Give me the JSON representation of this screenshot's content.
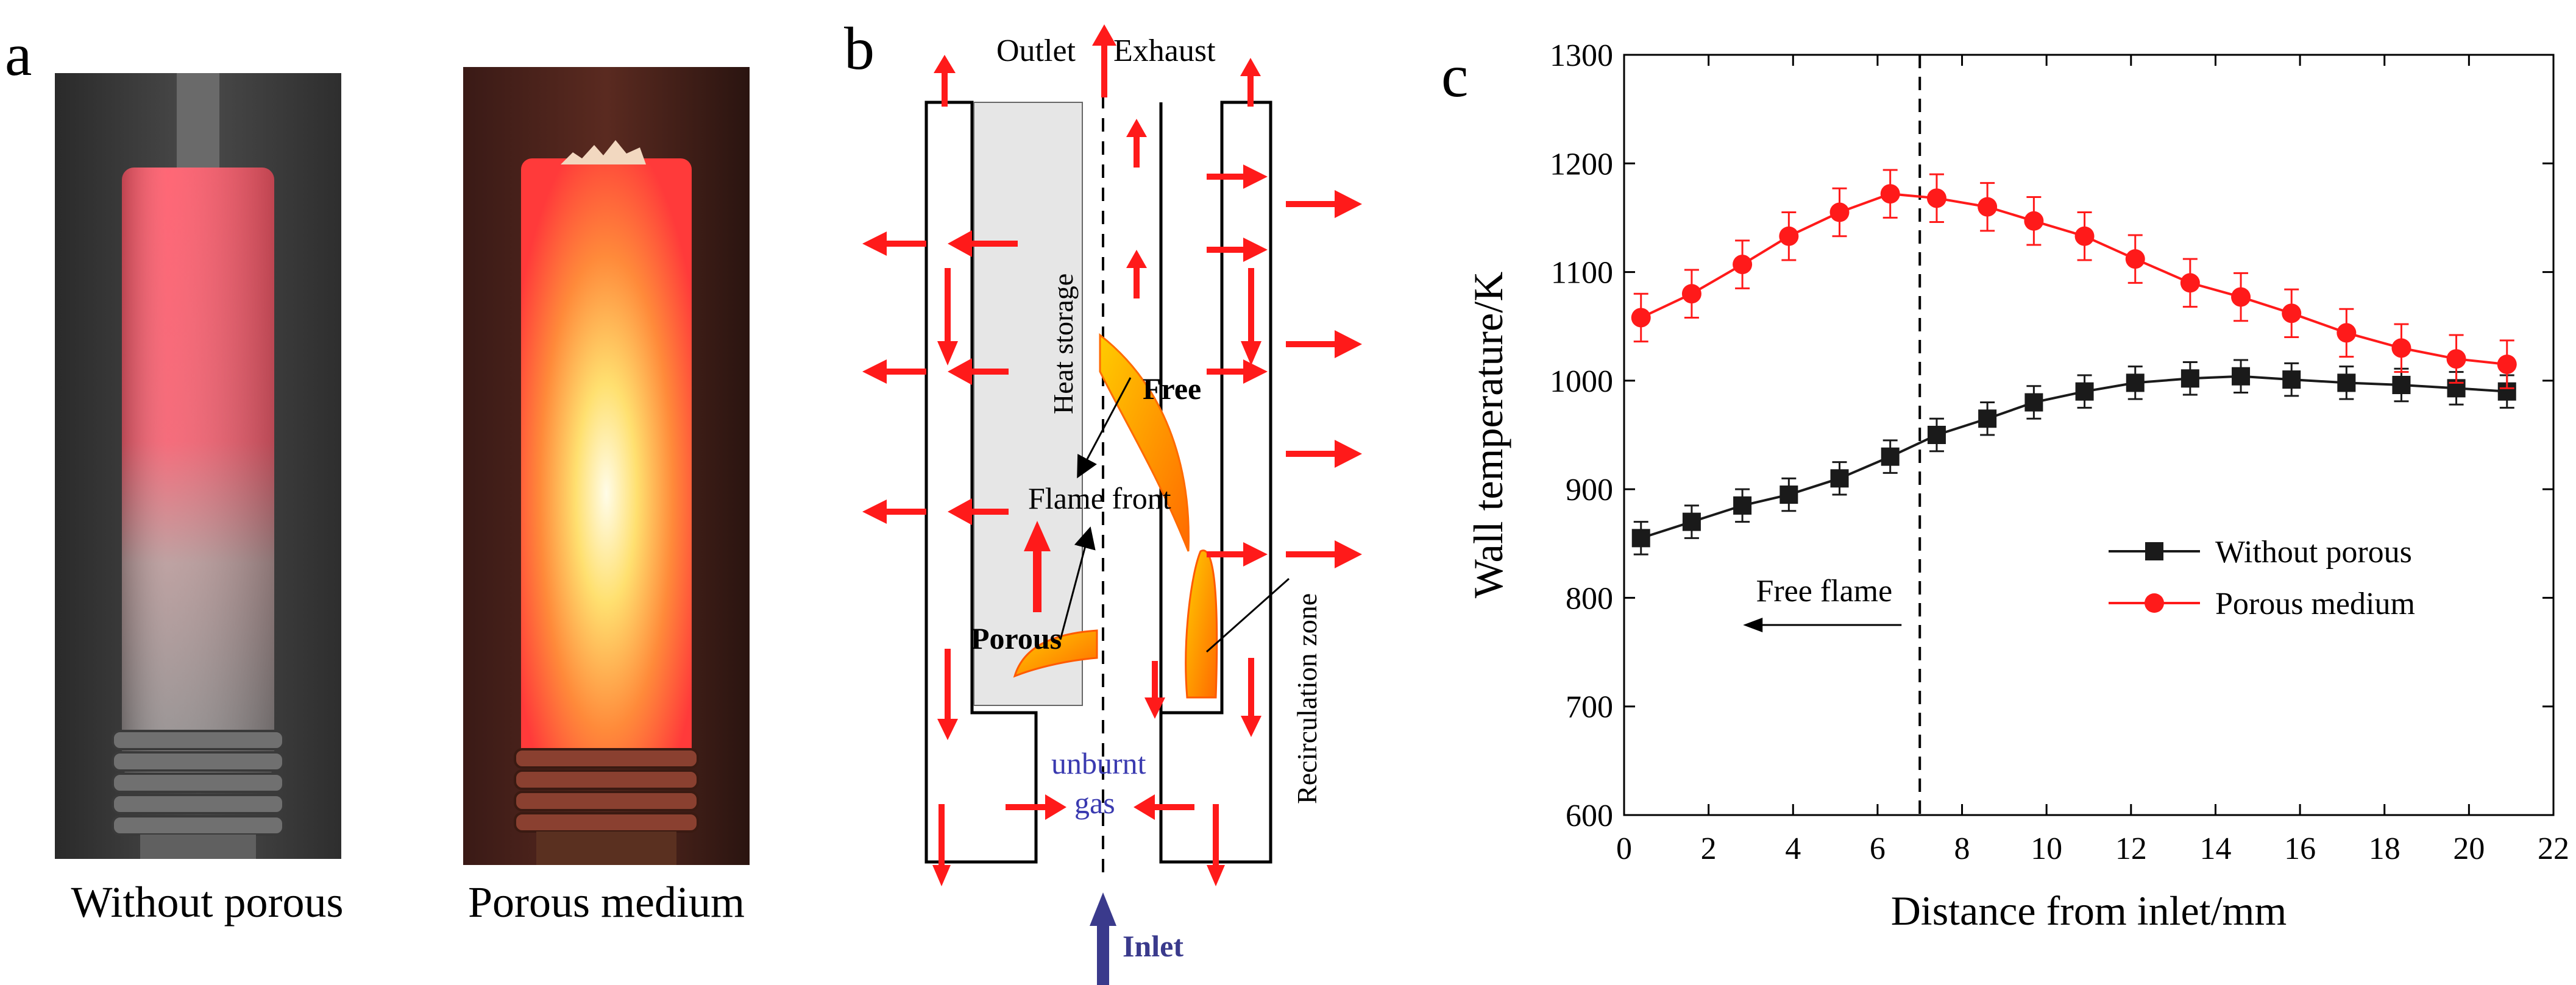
{
  "figure": {
    "panel_a": {
      "letter": "a",
      "photos": [
        {
          "caption": "Without porous"
        },
        {
          "caption": "Porous medium"
        }
      ]
    },
    "panel_b": {
      "letter": "b",
      "labels": {
        "outlet": "Outlet",
        "exhaust": "Exhaust",
        "heat_storage": "Heat storage",
        "free": "Free",
        "flame_front": "Flame front",
        "porous": "Porous",
        "recirculation_zone": "Recirculation zone",
        "unburnt": "unburnt",
        "gas": "gas",
        "inlet": "Inlet"
      },
      "colors": {
        "arrow": "#ff1a1a",
        "inlet_arrow": "#3a3a8c",
        "flame": "#ff9a00"
      }
    },
    "panel_c": {
      "letter": "c"
    }
  },
  "chart_data": {
    "type": "line",
    "title": "",
    "xlabel": "Distance from inlet/mm",
    "ylabel": "Wall temperature/K",
    "xlim": [
      0,
      22
    ],
    "ylim": [
      600,
      1300
    ],
    "xticks": [
      0,
      2,
      4,
      6,
      8,
      10,
      12,
      14,
      16,
      18,
      20,
      22
    ],
    "yticks": [
      600,
      700,
      800,
      900,
      1000,
      1100,
      1200,
      1300
    ],
    "grid": false,
    "legend_position": "center-right",
    "x": [
      0.4,
      1.6,
      2.8,
      3.9,
      5.1,
      6.3,
      7.4,
      8.6,
      9.7,
      10.9,
      12.1,
      13.4,
      14.6,
      15.8,
      17.1,
      18.4,
      19.7,
      20.9
    ],
    "series": [
      {
        "name": "Without porous",
        "color": "#1a1a1a",
        "marker": "square",
        "values": [
          855,
          870,
          885,
          895,
          910,
          930,
          950,
          965,
          980,
          990,
          998,
          1002,
          1004,
          1001,
          998,
          996,
          993,
          990
        ],
        "error": 15
      },
      {
        "name": "Porous medium",
        "color": "#ff1a1a",
        "marker": "circle",
        "values": [
          1058,
          1080,
          1107,
          1133,
          1155,
          1172,
          1168,
          1160,
          1147,
          1133,
          1112,
          1090,
          1077,
          1062,
          1044,
          1030,
          1020,
          1015
        ],
        "error": 22
      }
    ],
    "annotations": {
      "vline_x": 7,
      "free_flame_label": "Free flame"
    }
  }
}
